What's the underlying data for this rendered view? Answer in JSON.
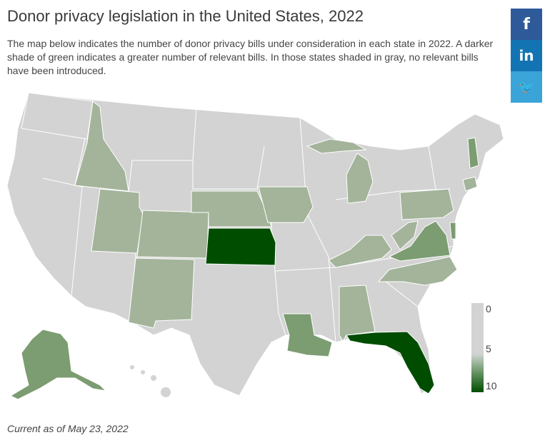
{
  "title": "Donor privacy legislation in the United States, 2022",
  "description": "The map below indicates the number of donor privacy bills under consideration in each state in 2022. A darker shade of green indicates a greater number of relevant bills. In those states shaded in gray, no relevant bills have been introduced.",
  "share": {
    "facebook": "f",
    "linkedin": "in",
    "twitter": "🐦"
  },
  "legend": {
    "min": "0",
    "mid": "5",
    "max": "10"
  },
  "colors": {
    "none": "#d3d3d3",
    "low": "#a3b49a",
    "mid": "#7c9c72",
    "high": "#4f7f4a",
    "max": "#004d00"
  },
  "footer": "Current as of May 23, 2022"
}
